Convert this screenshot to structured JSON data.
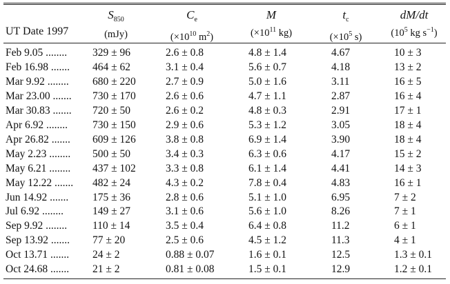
{
  "headers": {
    "date": "UT Date 1997",
    "s850": {
      "symbol": "S",
      "sub": "850",
      "unit": "(mJy)"
    },
    "ce": {
      "symbol": "C",
      "sub": "e",
      "unit_pre": "(×10",
      "unit_exp": "10",
      "unit_post": " m",
      "unit_exp2": "2",
      "unit_close": ")"
    },
    "m": {
      "symbol": "M",
      "unit_pre": "(×10",
      "unit_exp": "11",
      "unit_post": " kg)"
    },
    "tc": {
      "symbol": "t",
      "sub": "c",
      "unit_pre": "(×10",
      "unit_exp": "5",
      "unit_post": " s)"
    },
    "dmdt": {
      "symbol": "dM/dt",
      "unit_pre": "(10",
      "unit_exp": "5",
      "unit_post": " kg s",
      "unit_exp2": "−1",
      "unit_close": ")"
    }
  },
  "rows": [
    {
      "date": "Feb 9.05 ........",
      "s850": "329 ± 96",
      "ce": "2.6 ± 0.8",
      "m": "4.8 ± 1.4",
      "tc": "4.67",
      "dmdt": "10 ± 3"
    },
    {
      "date": "Feb 16.98 .......",
      "s850": "464 ± 62",
      "ce": "3.1 ± 0.4",
      "m": "5.6 ± 0.7",
      "tc": "4.18",
      "dmdt": "13 ± 2"
    },
    {
      "date": "Mar 9.92 ........",
      "s850": "680 ± 220",
      "ce": "2.7 ± 0.9",
      "m": "5.0 ± 1.6",
      "tc": "3.11",
      "dmdt": "16 ± 5"
    },
    {
      "date": "Mar 23.00 .......",
      "s850": "730 ± 170",
      "ce": "2.6 ± 0.6",
      "m": "4.7 ± 1.1",
      "tc": "2.87",
      "dmdt": "16 ± 4"
    },
    {
      "date": "Mar 30.83 .......",
      "s850": "720 ± 50",
      "ce": "2.6 ± 0.2",
      "m": "4.8 ± 0.3",
      "tc": "2.91",
      "dmdt": "17 ± 1"
    },
    {
      "date": "Apr 6.92 ........",
      "s850": "730 ± 150",
      "ce": "2.9 ± 0.6",
      "m": "5.3 ± 1.2",
      "tc": "3.05",
      "dmdt": "18 ± 4"
    },
    {
      "date": "Apr 26.82 .......",
      "s850": "609 ± 126",
      "ce": "3.8 ± 0.8",
      "m": "6.9 ± 1.4",
      "tc": "3.90",
      "dmdt": "18 ± 4"
    },
    {
      "date": "May 2.23 ........",
      "s850": "500 ± 50",
      "ce": "3.4 ± 0.3",
      "m": "6.3 ± 0.6",
      "tc": "4.17",
      "dmdt": "15 ± 2"
    },
    {
      "date": "May 6.21 ........",
      "s850": "437 ± 102",
      "ce": "3.3 ± 0.8",
      "m": "6.1 ± 1.4",
      "tc": "4.41",
      "dmdt": "14 ± 3"
    },
    {
      "date": "May 12.22 .......",
      "s850": "482 ± 24",
      "ce": "4.3 ± 0.2",
      "m": "7.8 ± 0.4",
      "tc": "4.83",
      "dmdt": "16 ± 1"
    },
    {
      "date": "Jun 14.92 .......",
      "s850": "175 ± 36",
      "ce": "2.8 ± 0.6",
      "m": "5.1 ± 1.0",
      "tc": "6.95",
      "dmdt": "7 ± 2"
    },
    {
      "date": "Jul 6.92 ........",
      "s850": "149 ± 27",
      "ce": "3.1 ± 0.6",
      "m": "5.6 ± 1.0",
      "tc": "8.26",
      "dmdt": "7 ± 1"
    },
    {
      "date": "Sep 9.92 ........",
      "s850": "110 ± 14",
      "ce": "3.5 ± 0.4",
      "m": "6.4 ± 0.8",
      "tc": "11.2",
      "dmdt": "6 ± 1"
    },
    {
      "date": "Sep 13.92 .......",
      "s850": "77 ± 20",
      "ce": "2.5 ± 0.6",
      "m": "4.5 ± 1.2",
      "tc": "11.3",
      "dmdt": "4 ± 1"
    },
    {
      "date": "Oct 13.71 .......",
      "s850": "24 ± 2",
      "ce": "0.88 ± 0.07",
      "m": "1.6 ± 0.1",
      "tc": "12.5",
      "dmdt": "1.3 ± 0.1"
    },
    {
      "date": "Oct 24.68 .......",
      "s850": "21 ± 2",
      "ce": "0.81 ± 0.08",
      "m": "1.5 ± 0.1",
      "tc": "12.9",
      "dmdt": "1.2 ± 0.1"
    }
  ]
}
